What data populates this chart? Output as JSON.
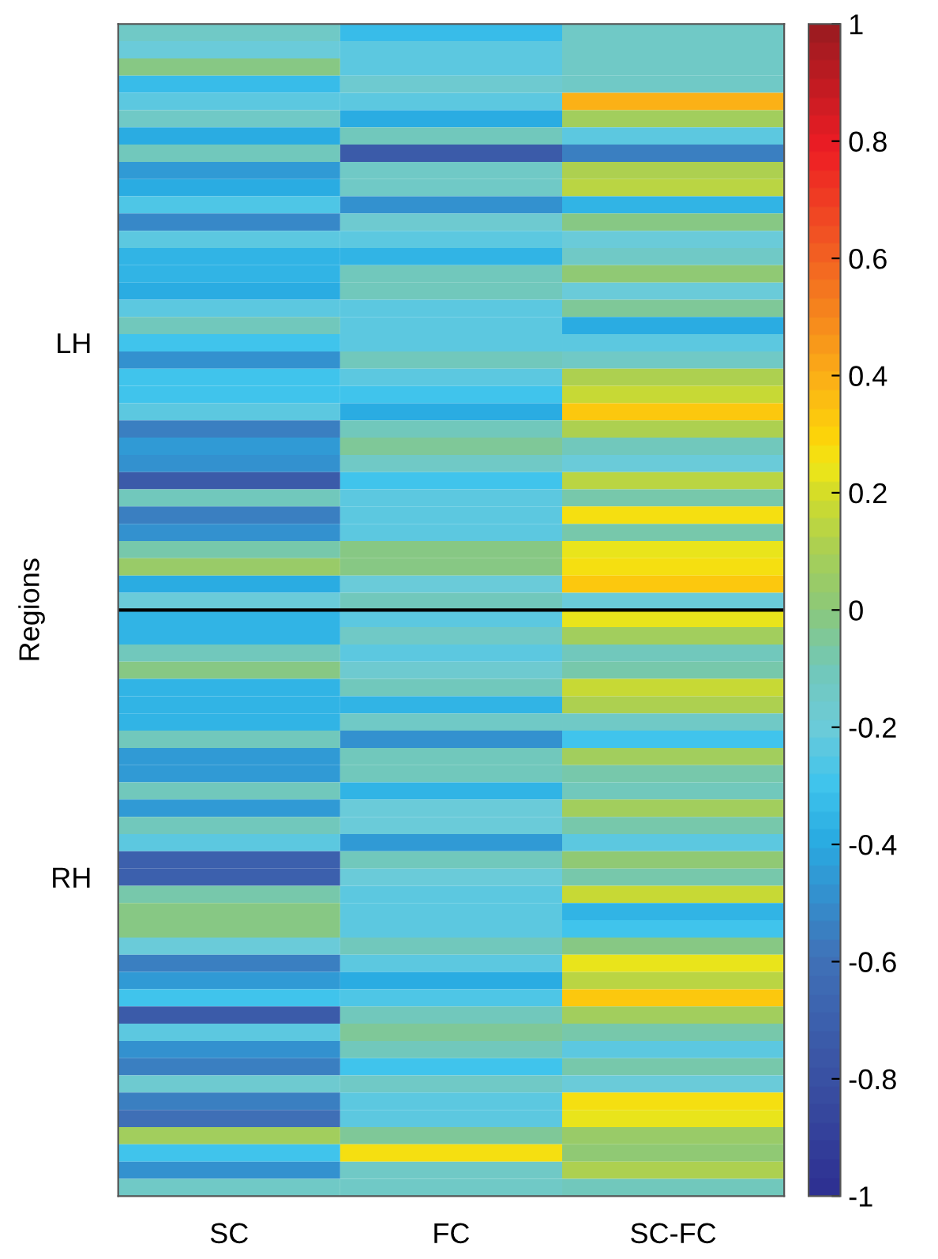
{
  "chart_data": {
    "type": "heatmap",
    "ylabel": "Regions",
    "categories": [
      "SC",
      "FC",
      "SC-FC"
    ],
    "y_categories": [
      null,
      null,
      null,
      null,
      null,
      null,
      null,
      null,
      null,
      null,
      null,
      null,
      null,
      null,
      null,
      null,
      null,
      null,
      "LH",
      null,
      null,
      null,
      null,
      null,
      null,
      null,
      null,
      null,
      null,
      null,
      null,
      null,
      null,
      null,
      null,
      null,
      null,
      null,
      null,
      null,
      null,
      null,
      null,
      null,
      null,
      null,
      null,
      null,
      null,
      "RH",
      null,
      null,
      null,
      null,
      null,
      null,
      null,
      null,
      null,
      null,
      null,
      null,
      null,
      null,
      null,
      null,
      null,
      null
    ],
    "cells": [
      [
        -0.15,
        -0.33,
        -0.15
      ],
      [
        -0.2,
        -0.22,
        -0.15
      ],
      [
        -0.03,
        -0.22,
        -0.15
      ],
      [
        -0.32,
        -0.17,
        -0.15
      ],
      [
        -0.22,
        -0.22,
        0.38
      ],
      [
        -0.15,
        -0.38,
        0.08
      ],
      [
        -0.38,
        -0.12,
        -0.22
      ],
      [
        -0.12,
        -0.75,
        -0.55
      ],
      [
        -0.45,
        -0.15,
        0.12
      ],
      [
        -0.38,
        -0.15,
        0.15
      ],
      [
        -0.28,
        -0.5,
        -0.35
      ],
      [
        -0.52,
        -0.17,
        -0.03
      ],
      [
        -0.22,
        -0.22,
        -0.2
      ],
      [
        -0.35,
        -0.35,
        -0.15
      ],
      [
        -0.35,
        -0.1,
        0.03
      ],
      [
        -0.38,
        -0.12,
        -0.2
      ],
      [
        -0.22,
        -0.22,
        -0.05
      ],
      [
        -0.12,
        -0.22,
        -0.38
      ],
      [
        -0.3,
        -0.22,
        -0.22
      ],
      [
        -0.5,
        -0.12,
        -0.15
      ],
      [
        -0.3,
        -0.22,
        0.1
      ],
      [
        -0.3,
        -0.3,
        0.18
      ],
      [
        -0.22,
        -0.38,
        0.33
      ],
      [
        -0.55,
        -0.12,
        0.1
      ],
      [
        -0.45,
        -0.05,
        -0.12
      ],
      [
        -0.5,
        -0.15,
        -0.2
      ],
      [
        -0.75,
        -0.3,
        0.15
      ],
      [
        -0.12,
        -0.22,
        -0.08
      ],
      [
        -0.55,
        -0.22,
        0.27
      ],
      [
        -0.5,
        -0.22,
        -0.08
      ],
      [
        -0.08,
        -0.03,
        0.22
      ],
      [
        0.05,
        -0.03,
        0.27
      ],
      [
        -0.38,
        -0.2,
        0.32
      ],
      [
        -0.2,
        -0.12,
        -0.2
      ],
      [
        -0.35,
        -0.22,
        0.22
      ],
      [
        -0.35,
        -0.15,
        0.08
      ],
      [
        -0.1,
        -0.22,
        -0.1
      ],
      [
        -0.03,
        -0.17,
        -0.08
      ],
      [
        -0.35,
        -0.1,
        0.17
      ],
      [
        -0.35,
        -0.35,
        0.1
      ],
      [
        -0.35,
        -0.15,
        -0.15
      ],
      [
        -0.1,
        -0.5,
        -0.3
      ],
      [
        -0.45,
        -0.1,
        0.08
      ],
      [
        -0.45,
        -0.1,
        -0.08
      ],
      [
        -0.1,
        -0.35,
        -0.1
      ],
      [
        -0.45,
        -0.2,
        0.08
      ],
      [
        -0.1,
        -0.2,
        -0.08
      ],
      [
        -0.22,
        -0.45,
        -0.22
      ],
      [
        -0.7,
        -0.1,
        0.02
      ],
      [
        -0.7,
        -0.2,
        -0.08
      ],
      [
        -0.08,
        -0.22,
        0.17
      ],
      [
        -0.03,
        -0.22,
        -0.35
      ],
      [
        -0.03,
        -0.22,
        -0.3
      ],
      [
        -0.2,
        -0.1,
        -0.03
      ],
      [
        -0.55,
        -0.22,
        0.22
      ],
      [
        -0.45,
        -0.38,
        0.15
      ],
      [
        -0.3,
        -0.28,
        0.32
      ],
      [
        -0.75,
        -0.1,
        0.08
      ],
      [
        -0.22,
        -0.05,
        -0.08
      ],
      [
        -0.5,
        -0.1,
        -0.22
      ],
      [
        -0.55,
        -0.3,
        -0.08
      ],
      [
        -0.17,
        -0.15,
        -0.2
      ],
      [
        -0.55,
        -0.22,
        0.27
      ],
      [
        -0.6,
        -0.22,
        0.22
      ],
      [
        0.08,
        -0.05,
        0.05
      ],
      [
        -0.3,
        0.27,
        0.03
      ],
      [
        -0.5,
        -0.15,
        0.12
      ],
      [
        -0.15,
        -0.15,
        -0.12
      ]
    ],
    "clim": [
      -1,
      1
    ],
    "cticks": [
      -1,
      -0.8,
      -0.6,
      -0.4,
      -0.2,
      0,
      0.2,
      0.4,
      0.6,
      0.8,
      1
    ]
  }
}
